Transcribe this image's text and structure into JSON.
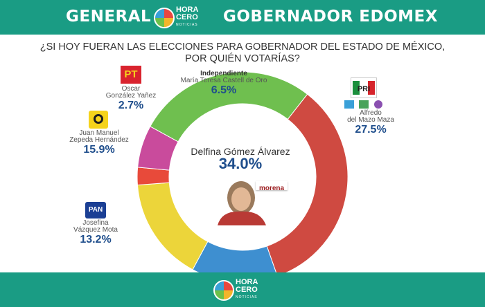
{
  "header": {
    "left_title": "GENERAL",
    "right_title": "GOBERNADOR EDOMEX",
    "logo": {
      "line1": "HORA",
      "line2": "CERO",
      "line3": "NOTICIAS"
    }
  },
  "question": {
    "line1": "¿SI HOY FUERAN LAS ELECCIONES PARA GOBERNADOR DEL ESTADO DE MÉXICO,",
    "line2": "POR QUIÉN VOTARÍAS?"
  },
  "candidates": {
    "independiente": {
      "label": "Independiente",
      "name": "María Teresa Castell de Oro",
      "pct": "6.5%"
    },
    "pt": {
      "name1": "Oscar",
      "name2": "González Yañez",
      "pct": "2.7%",
      "party": "PT"
    },
    "prd": {
      "name1": "Juan Manuel",
      "name2": "Zepeda Hernández",
      "pct": "15.9%",
      "party": "PRD"
    },
    "pan": {
      "name1": "Josefina",
      "name2": "Vázquez Mota",
      "pct": "13.2%",
      "party": "PAN"
    },
    "pri": {
      "name1": "Alfredo",
      "name2": "del Mazo Maza",
      "pct": "27.5%",
      "party": "PRI"
    },
    "morena": {
      "name": "Delfina Gómez Álvarez",
      "pct": "34.0%",
      "party": "morena"
    }
  },
  "footer": {
    "logo": {
      "line1": "HORA",
      "line2": "CERO",
      "line3": "NOTICIAS"
    }
  },
  "colors": {
    "teal": "#1a9c84",
    "navy": "#1f4e8c"
  },
  "chart_data": {
    "type": "pie",
    "donut": true,
    "title": "¿SI HOY FUERAN LAS ELECCIONES PARA GOBERNADOR DEL ESTADO DE MÉXICO, POR QUIÉN VOTARÍAS?",
    "slices": [
      {
        "label": "Delfina Gómez Álvarez",
        "value": 34.0,
        "color": "#cf4a41"
      },
      {
        "label": "Josefina Vázquez Mota",
        "value": 13.2,
        "color": "#3e8fd0"
      },
      {
        "label": "Juan Manuel Zepeda Hernández",
        "value": 15.9,
        "color": "#ecd53a"
      },
      {
        "label": "Oscar González Yañez",
        "value": 2.7,
        "color": "#e84a3a"
      },
      {
        "label": "María Teresa Castell de Oro",
        "value": 6.5,
        "color": "#c94b9c"
      },
      {
        "label": "Alfredo del Mazo Maza",
        "value": 27.5,
        "color": "#6fbf4f"
      }
    ]
  }
}
